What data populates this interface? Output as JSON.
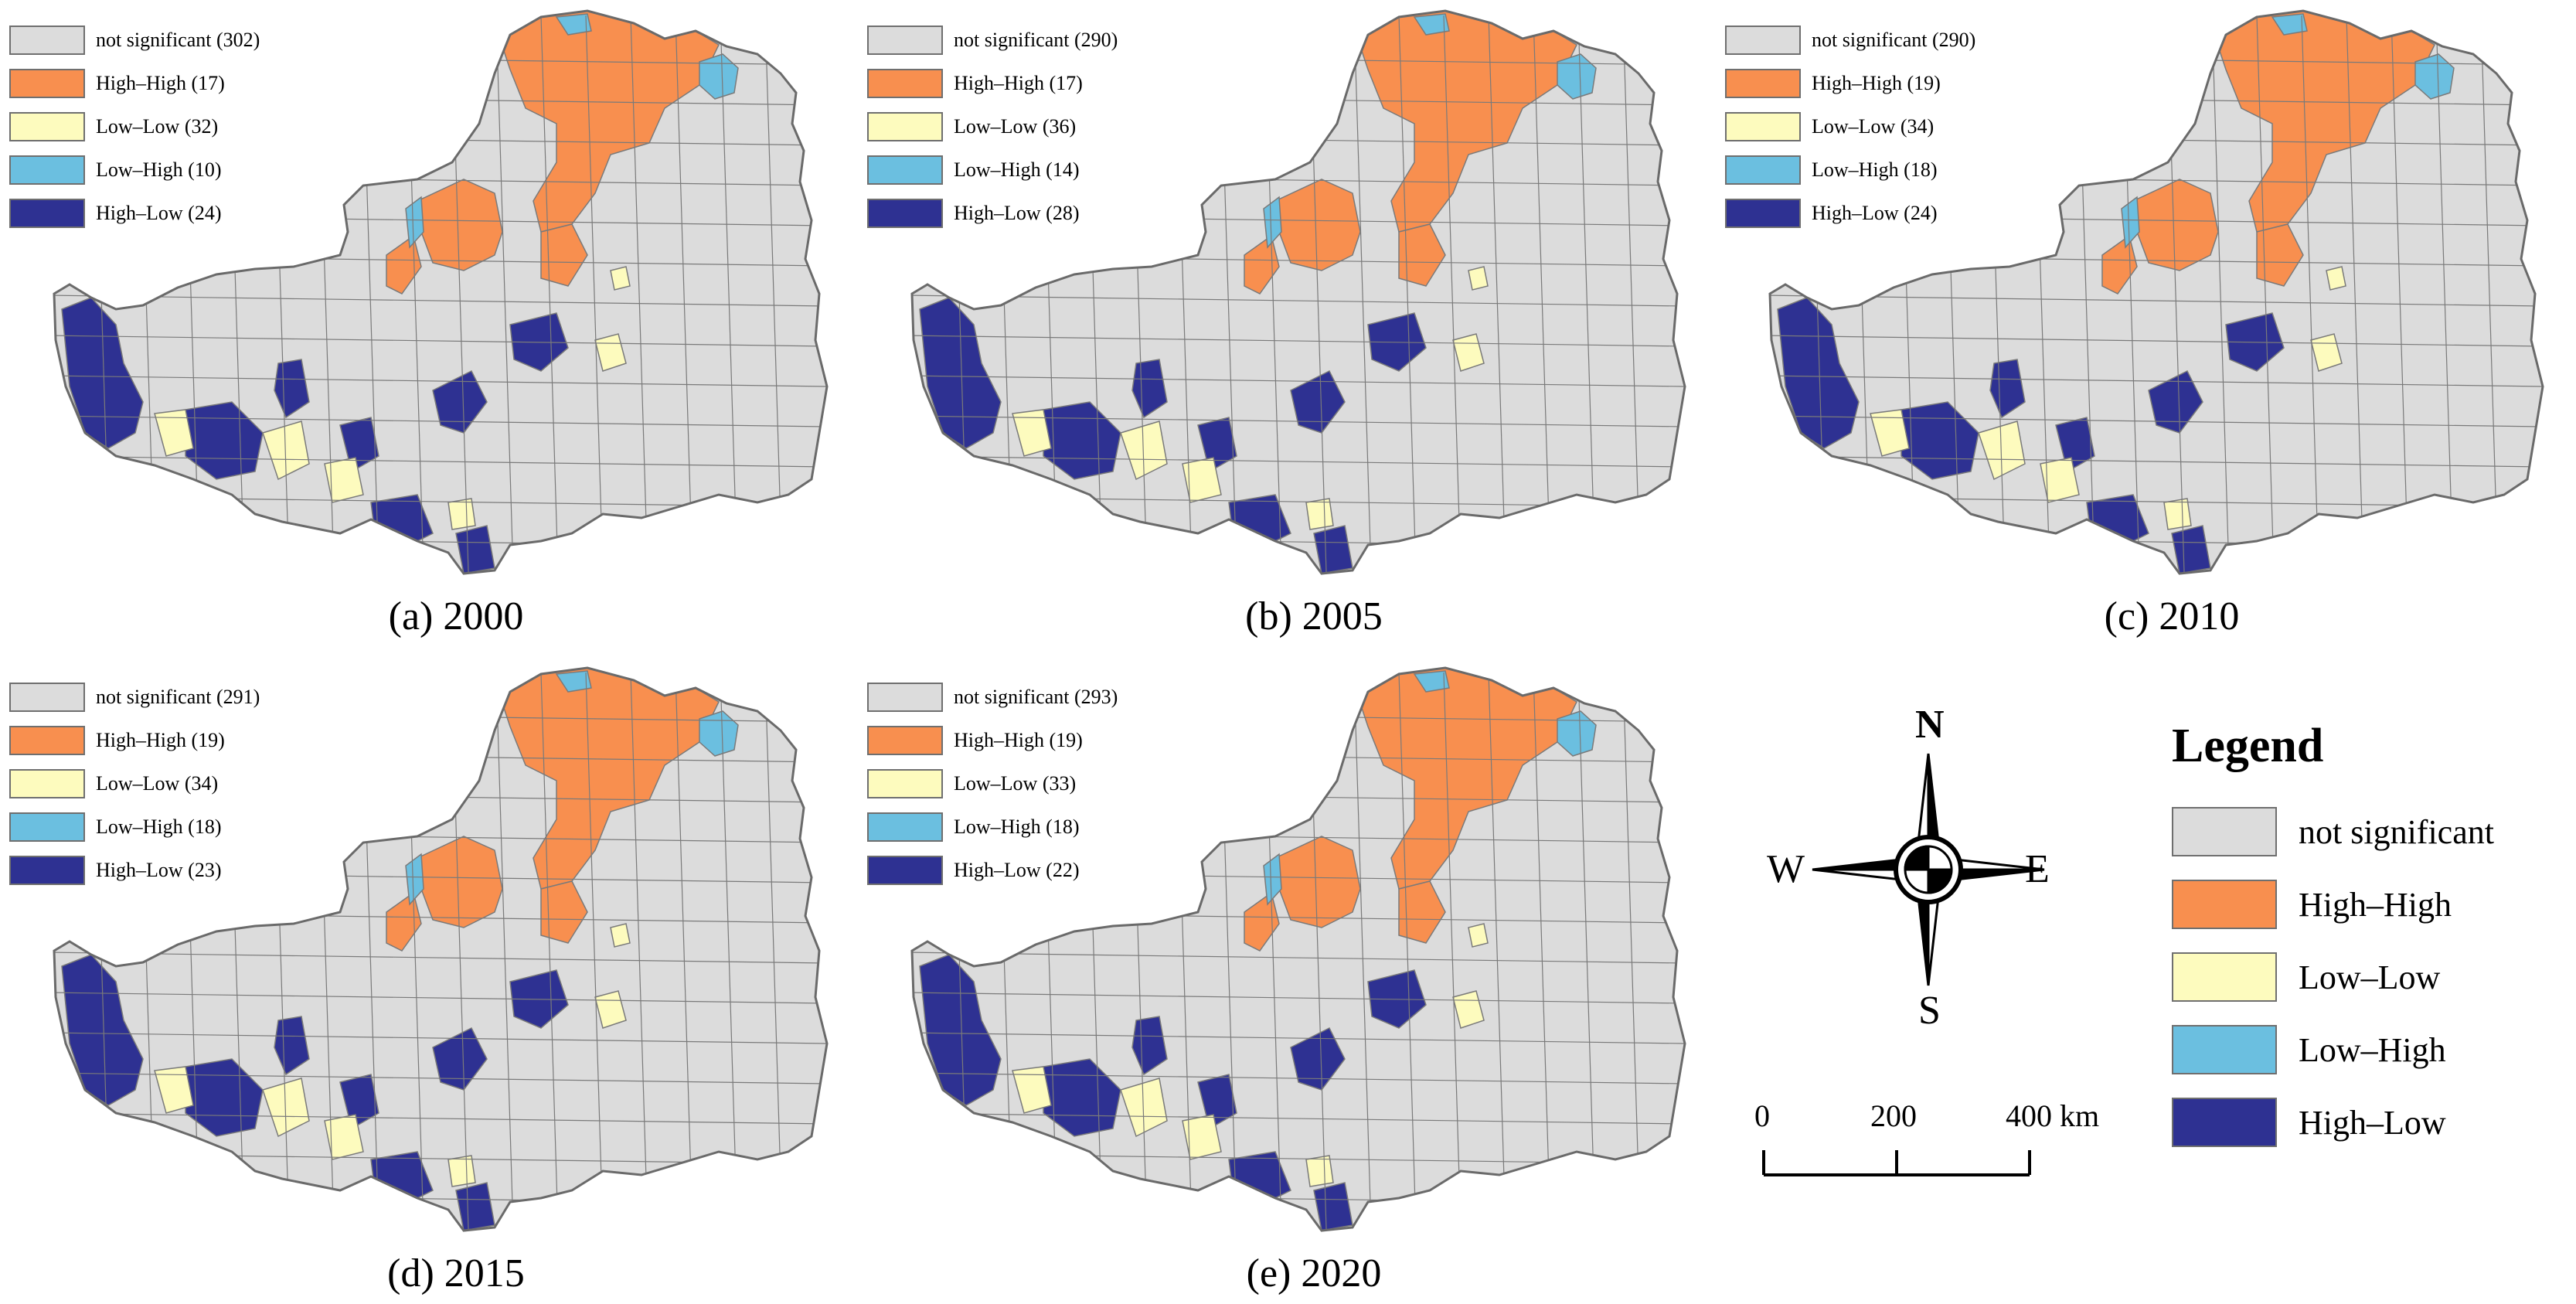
{
  "colors": {
    "not_significant": "#dcdcdc",
    "high_high": "#f88f4f",
    "low_low": "#fdfbbe",
    "low_high": "#6bbfe0",
    "high_low": "#2e3192",
    "boundary": "#7a7a7a"
  },
  "panels": [
    {
      "caption": "(a) 2000",
      "legend": [
        "not significant (302)",
        "High–High (17)",
        "Low–Low (32)",
        "Low–High (10)",
        "High–Low (24)"
      ]
    },
    {
      "caption": "(b) 2005",
      "legend": [
        "not significant (290)",
        "High–High (17)",
        "Low–Low (36)",
        "Low–High (14)",
        "High–Low (28)"
      ]
    },
    {
      "caption": "(c) 2010",
      "legend": [
        "not significant (290)",
        "High–High (19)",
        "Low–Low (34)",
        "Low–High (18)",
        "High–Low (24)"
      ]
    },
    {
      "caption": "(d) 2015",
      "legend": [
        "not significant (291)",
        "High–High (19)",
        "Low–Low (34)",
        "Low–High (18)",
        "High–Low (23)"
      ]
    },
    {
      "caption": "(e) 2020",
      "legend": [
        "not significant (293)",
        "High–High (19)",
        "Low–Low (33)",
        "Low–High (18)",
        "High–Low (22)"
      ]
    }
  ],
  "compass": {
    "n": "N",
    "s": "S",
    "e": "E",
    "w": "W"
  },
  "scale": {
    "labels": [
      "0",
      "200",
      "400 km"
    ]
  },
  "legend": {
    "title": "Legend",
    "items": [
      "not significant",
      "High–High",
      "Low–Low",
      "Low–High",
      "High–Low"
    ]
  }
}
